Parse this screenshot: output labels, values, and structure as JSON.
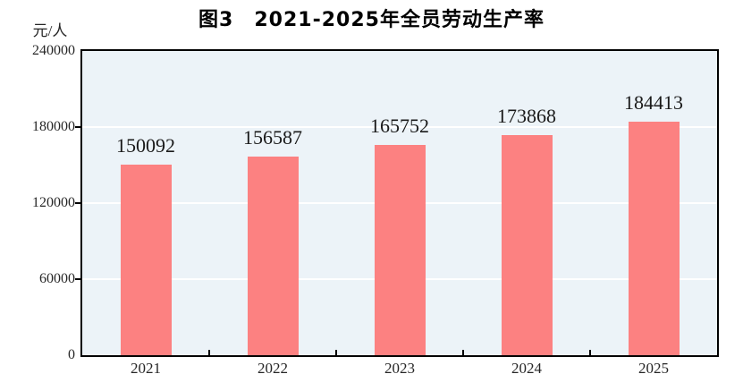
{
  "chart_data": {
    "type": "bar",
    "title": "图3　2021-2025年全员劳动生产率",
    "unit_label": "元/人",
    "categories": [
      "2021",
      "2022",
      "2023",
      "2024",
      "2025"
    ],
    "values": [
      150092,
      156587,
      165752,
      173868,
      184413
    ],
    "xlabel": "",
    "ylabel": "元/人",
    "ylim": [
      0,
      240000
    ],
    "yticks": [
      0,
      60000,
      120000,
      180000,
      240000
    ],
    "grid": true,
    "gridline_orientation": "horizontal",
    "legend_position": "none",
    "colors": {
      "bar": "#fc8181",
      "plot_background": "#ecf3f8",
      "gridline": "#ffffff",
      "axis": "#000000",
      "title_text": "#000000",
      "label_text": "#1a1a1a",
      "tick_text": "#262626"
    }
  }
}
